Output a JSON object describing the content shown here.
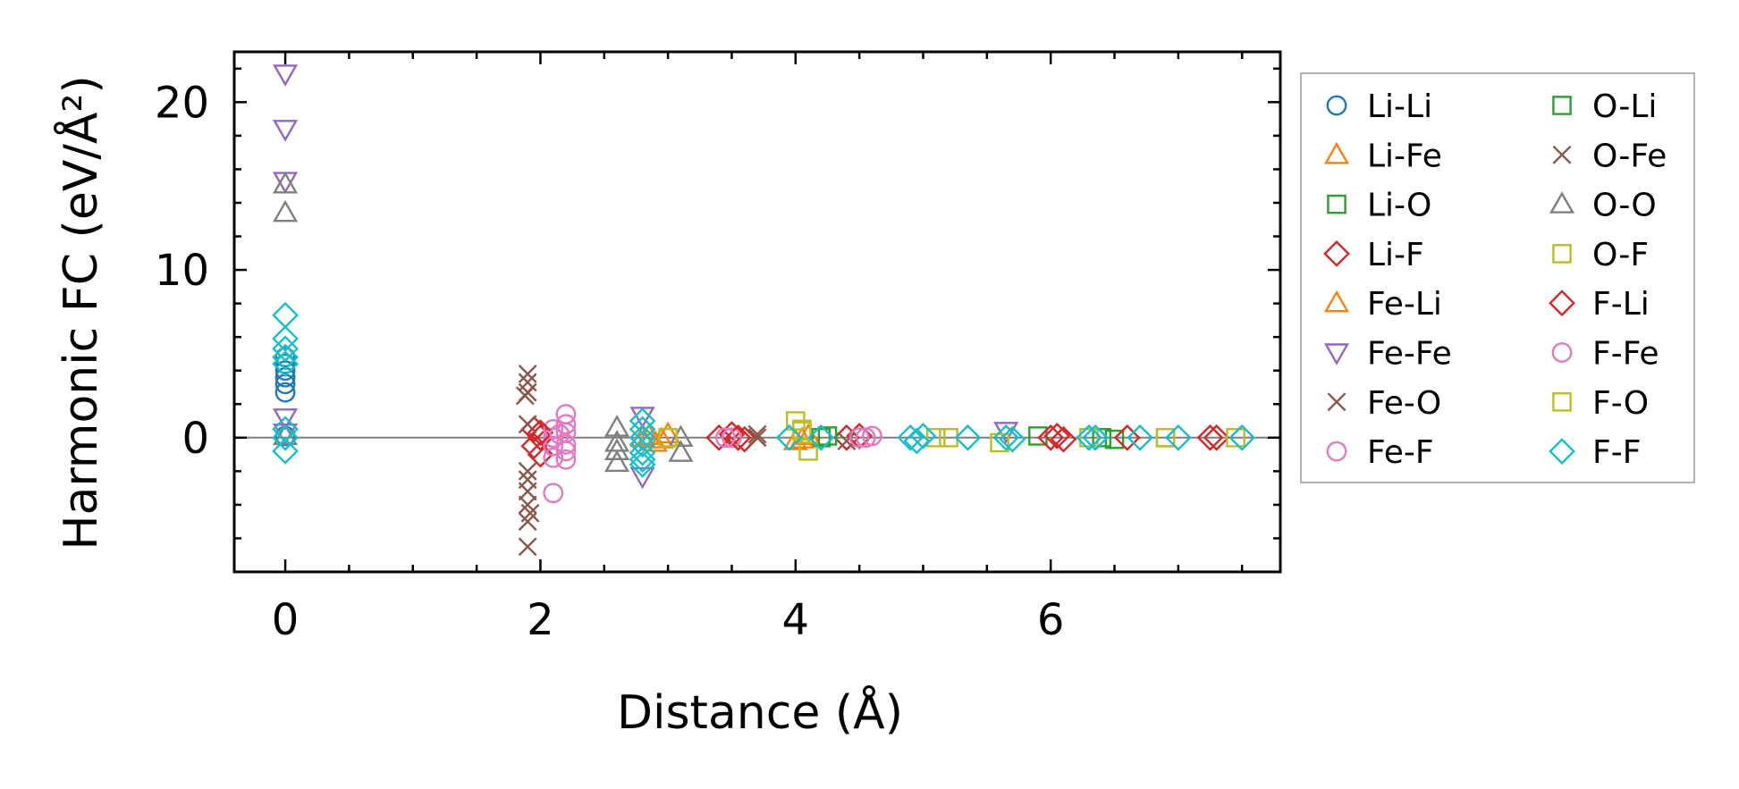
{
  "chart_data": {
    "type": "scatter",
    "xlabel": "Distance (Å)",
    "ylabel": "Harmonic FC (eV/Å²)",
    "xlim": [
      -0.4,
      7.8
    ],
    "ylim": [
      -8,
      23
    ],
    "x_ticks": [
      0,
      2,
      4,
      6
    ],
    "y_ticks": [
      0,
      10,
      20
    ],
    "reference_line_y": 0,
    "grid": false,
    "legend_position": "outside-right",
    "series": [
      {
        "name": "Li-Li",
        "marker": "circle",
        "color": "#1f77b4",
        "x": [
          0,
          0,
          0,
          0,
          0,
          0,
          0
        ],
        "y": [
          2.7,
          3.2,
          3.6,
          4.0,
          4.4,
          4.8,
          0.1
        ]
      },
      {
        "name": "Li-Fe",
        "marker": "triangle-up",
        "color": "#ff7f0e",
        "x": [
          2.8,
          2.9,
          3.0,
          4.0,
          4.1
        ],
        "y": [
          0.0,
          -0.3,
          0.2,
          -0.2,
          0.1
        ]
      },
      {
        "name": "Li-O",
        "marker": "square",
        "color": "#2ca02c",
        "x": [
          4.2,
          5.9,
          6.5
        ],
        "y": [
          0.0,
          0.1,
          -0.1
        ]
      },
      {
        "name": "Li-F",
        "marker": "diamond",
        "color": "#d62728",
        "x": [
          1.95,
          2.0,
          1.95,
          2.0,
          3.4,
          3.5,
          3.6,
          4.4,
          4.5,
          6.0,
          6.1,
          6.6,
          7.3
        ],
        "y": [
          0.5,
          0.0,
          -0.5,
          -1.0,
          0.0,
          0.2,
          -0.1,
          0.0,
          0.1,
          0.0,
          -0.1,
          0.0,
          0.0
        ]
      },
      {
        "name": "Fe-Li",
        "marker": "triangle-up",
        "color": "#ff7f0e",
        "x": [
          2.85,
          2.95,
          4.05
        ],
        "y": [
          0.1,
          -0.1,
          -0.1
        ]
      },
      {
        "name": "Fe-Fe",
        "marker": "triangle-down",
        "color": "#9467bd",
        "x": [
          0,
          0,
          0,
          0,
          0,
          2.8,
          2.8,
          5.65
        ],
        "y": [
          21.7,
          18.4,
          15.3,
          1.2,
          0.3,
          -2.3,
          1.3,
          0.4
        ]
      },
      {
        "name": "Fe-O",
        "marker": "x",
        "color": "#8c564b",
        "x": [
          1.9,
          1.9,
          1.9,
          1.9,
          1.9,
          1.9,
          1.9,
          1.9,
          1.9,
          1.9,
          3.7,
          4.4
        ],
        "y": [
          3.8,
          3.3,
          2.7,
          0.8,
          -2.0,
          -2.5,
          -3.2,
          -4.0,
          -5.0,
          -6.5,
          0.2,
          -0.2
        ]
      },
      {
        "name": "Fe-F",
        "marker": "circle",
        "color": "#e377c2",
        "x": [
          2.1,
          2.1,
          2.1,
          2.1,
          2.1,
          2.2,
          2.2,
          2.2,
          2.2,
          2.2,
          2.2,
          3.5,
          4.5,
          4.6
        ],
        "y": [
          0.5,
          0.0,
          -0.5,
          -1.2,
          -3.3,
          1.4,
          0.8,
          0.3,
          -0.4,
          -0.8,
          -1.3,
          0.0,
          0.0,
          0.1
        ]
      },
      {
        "name": "O-Li",
        "marker": "square",
        "color": "#2ca02c",
        "x": [
          4.25,
          6.4
        ],
        "y": [
          0.1,
          0.0
        ]
      },
      {
        "name": "O-Fe",
        "marker": "x",
        "color": "#8c564b",
        "x": [
          1.88,
          1.92,
          3.7
        ],
        "y": [
          2.5,
          -4.5,
          0.0
        ]
      },
      {
        "name": "O-O",
        "marker": "triangle-up",
        "color": "#7f7f7f",
        "x": [
          0,
          0,
          0,
          2.6,
          2.6,
          2.6,
          2.6,
          3.1,
          3.1
        ],
        "y": [
          15.1,
          13.4,
          0.1,
          0.6,
          -0.3,
          -0.8,
          -1.5,
          0.0,
          -0.9
        ]
      },
      {
        "name": "O-F",
        "marker": "square",
        "color": "#bcbd22",
        "x": [
          3.0,
          4.0,
          4.05,
          4.1,
          5.2,
          5.6,
          6.3,
          6.9,
          7.45
        ],
        "y": [
          0.0,
          1.0,
          0.5,
          -0.8,
          0.0,
          -0.3,
          0.0,
          0.0,
          0.0
        ]
      },
      {
        "name": "F-Li",
        "marker": "diamond",
        "color": "#d62728",
        "x": [
          2.0,
          3.55,
          6.05,
          7.25
        ],
        "y": [
          0.3,
          0.0,
          0.1,
          0.0
        ]
      },
      {
        "name": "F-Fe",
        "marker": "circle",
        "color": "#e377c2",
        "x": [
          2.15,
          3.45,
          4.55
        ],
        "y": [
          0.2,
          0.0,
          0.0
        ]
      },
      {
        "name": "F-O",
        "marker": "square",
        "color": "#bcbd22",
        "x": [
          4.05,
          5.1,
          6.9
        ],
        "y": [
          0.4,
          0.0,
          0.0
        ]
      },
      {
        "name": "F-F",
        "marker": "diamond",
        "color": "#17becf",
        "x": [
          0,
          0,
          0,
          0,
          0,
          0,
          0,
          0,
          2.8,
          2.8,
          2.8,
          2.8,
          2.8,
          2.8,
          2.8,
          3.95,
          4.2,
          4.9,
          4.95,
          5.0,
          5.35,
          5.65,
          5.7,
          6.3,
          6.35,
          6.7,
          7.0,
          7.5
        ],
        "y": [
          7.3,
          5.9,
          5.3,
          4.8,
          4.4,
          0.5,
          0.0,
          -0.8,
          1.0,
          0.5,
          0.0,
          -0.4,
          -0.9,
          -1.3,
          -1.6,
          0.0,
          0.0,
          0.0,
          -0.2,
          0.1,
          0.0,
          0.0,
          -0.1,
          0.0,
          0.0,
          0.0,
          0.0,
          0.0
        ]
      }
    ]
  }
}
